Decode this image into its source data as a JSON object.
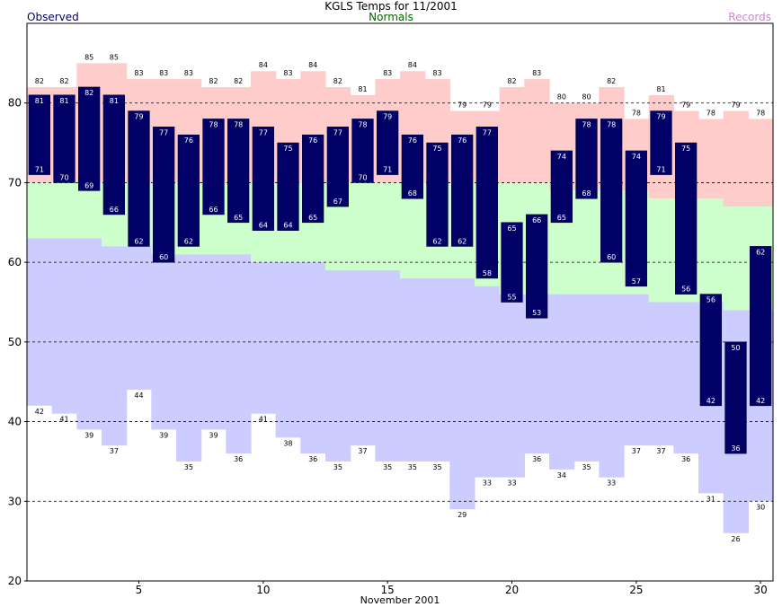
{
  "title": "KGLS Temps for 11/2001",
  "legend": {
    "observed": "Observed",
    "normals": "Normals",
    "records": "Records"
  },
  "colors": {
    "observed": "#000066",
    "normals_label": "#006600",
    "records_label": "#cc88cc",
    "record_high_fill": "#ffcccc",
    "normal_fill": "#ccffcc",
    "record_low_fill": "#ccccff",
    "grid": "#000000"
  },
  "chart_data": {
    "type": "bar",
    "title": "KGLS Temps for 11/2001",
    "xlabel": "November 2001",
    "ylabel": "",
    "ylim": [
      20,
      90
    ],
    "xlim": [
      0.5,
      30.5
    ],
    "yticks": [
      20,
      30,
      40,
      50,
      60,
      70,
      80
    ],
    "xticks": [
      5,
      10,
      15,
      20,
      25,
      30
    ],
    "grid": true,
    "legend": "top",
    "days": [
      1,
      2,
      3,
      4,
      5,
      6,
      7,
      8,
      9,
      10,
      11,
      12,
      13,
      14,
      15,
      16,
      17,
      18,
      19,
      20,
      21,
      22,
      23,
      24,
      25,
      26,
      27,
      28,
      29,
      30
    ],
    "series": [
      {
        "name": "Observed High",
        "values": [
          81,
          81,
          82,
          81,
          79,
          77,
          76,
          78,
          78,
          77,
          75,
          76,
          77,
          78,
          79,
          76,
          75,
          76,
          77,
          65,
          66,
          74,
          78,
          78,
          74,
          79,
          75,
          56,
          50,
          62
        ]
      },
      {
        "name": "Observed Low",
        "values": [
          71,
          70,
          69,
          66,
          62,
          60,
          62,
          66,
          65,
          64,
          64,
          65,
          67,
          70,
          71,
          68,
          62,
          62,
          58,
          55,
          53,
          65,
          68,
          60,
          57,
          71,
          56,
          42,
          36,
          42
        ]
      },
      {
        "name": "Records High",
        "values": [
          82,
          82,
          85,
          85,
          83,
          83,
          83,
          82,
          82,
          84,
          83,
          84,
          82,
          81,
          83,
          84,
          83,
          79,
          79,
          82,
          83,
          80,
          80,
          82,
          78,
          81,
          79,
          78,
          79,
          78
        ]
      },
      {
        "name": "Records Low",
        "values": [
          42,
          41,
          39,
          37,
          44,
          39,
          35,
          39,
          36,
          41,
          38,
          36,
          35,
          37,
          35,
          35,
          35,
          29,
          33,
          33,
          36,
          34,
          35,
          33,
          37,
          37,
          36,
          31,
          26,
          30
        ]
      },
      {
        "name": "Normal High",
        "values": [
          70,
          70,
          70,
          70,
          70,
          70,
          70,
          70,
          70,
          70,
          70,
          70,
          70,
          70,
          70,
          70,
          70,
          70,
          70,
          70,
          70,
          69,
          69,
          69,
          69,
          68,
          68,
          68,
          67,
          67
        ]
      },
      {
        "name": "Normal Low",
        "values": [
          63,
          63,
          63,
          62,
          62,
          61,
          61,
          61,
          61,
          60,
          60,
          60,
          59,
          59,
          59,
          58,
          58,
          58,
          57,
          56,
          56,
          56,
          56,
          56,
          56,
          55,
          55,
          55,
          54,
          54
        ]
      }
    ]
  }
}
